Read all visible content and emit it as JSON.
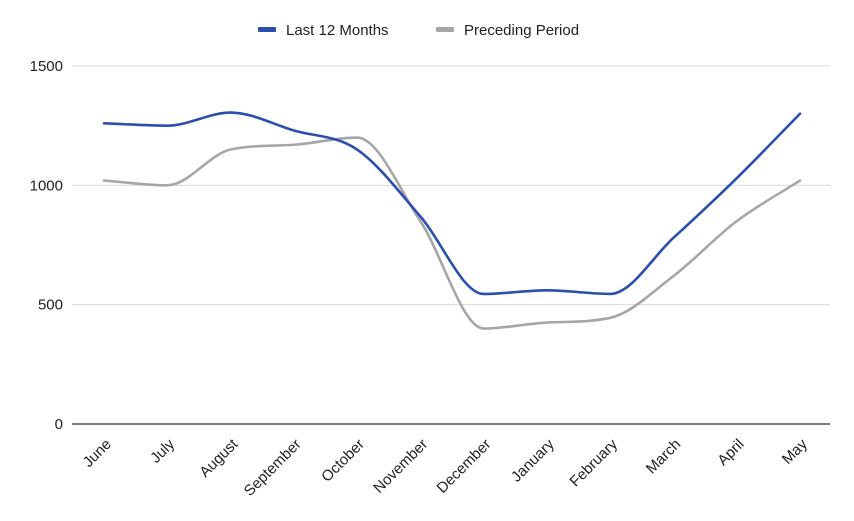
{
  "chart_data": {
    "type": "line",
    "title": "",
    "xlabel": "",
    "ylabel": "",
    "categories": [
      "June",
      "July",
      "August",
      "September",
      "October",
      "November",
      "December",
      "January",
      "February",
      "March",
      "April",
      "May"
    ],
    "series": [
      {
        "name": "Last 12 Months",
        "color": "#2a4fae",
        "values": [
          1260,
          1250,
          1305,
          1230,
          1150,
          870,
          545,
          560,
          545,
          780,
          1030,
          1300
        ]
      },
      {
        "name": "Preceding Period",
        "color": "#a6a6a6",
        "values": [
          1020,
          1000,
          1150,
          1170,
          1200,
          850,
          400,
          425,
          445,
          620,
          850,
          1020
        ]
      }
    ],
    "ylim": [
      0,
      1500
    ],
    "yticks": [
      0,
      500,
      1000,
      1500
    ],
    "grid": true,
    "legend_position": "top-center",
    "smooth": true
  }
}
